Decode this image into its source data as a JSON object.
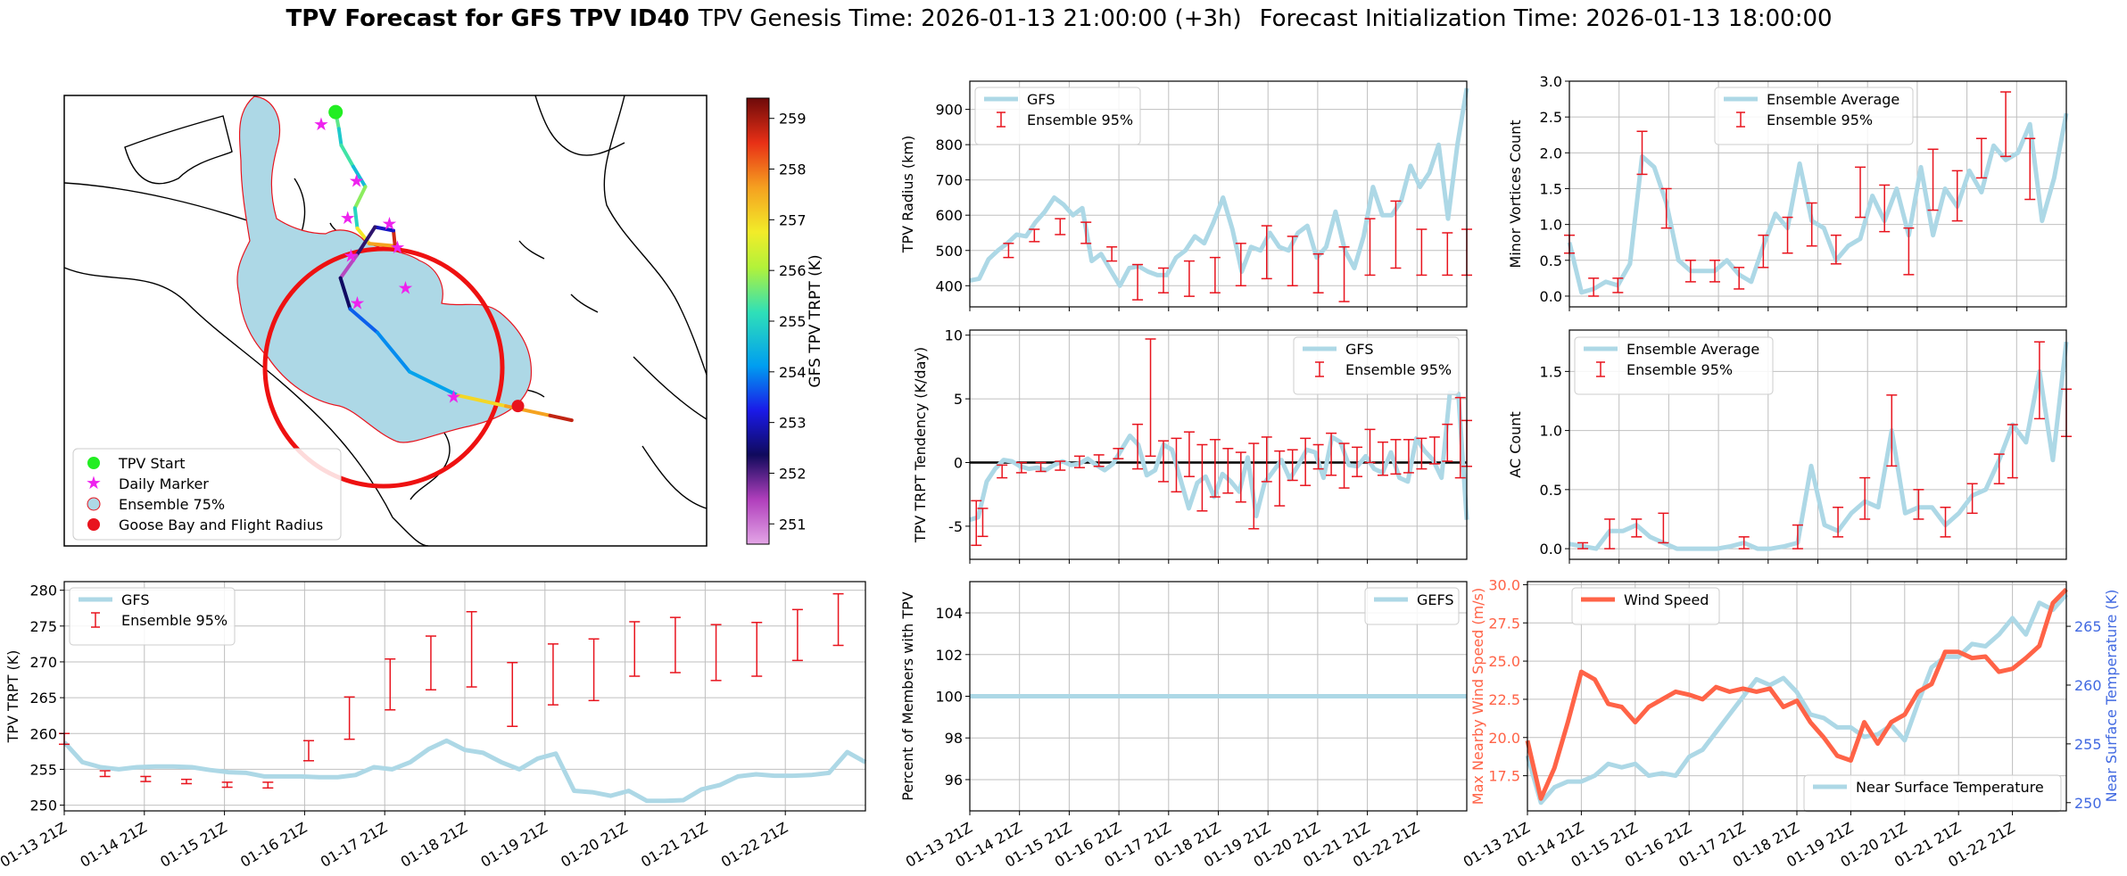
{
  "figure": {
    "title_bold": "TPV Forecast for GFS TPV ID40",
    "genesis": "TPV Genesis Time: 2026-01-13 21:00:00 (+3h)",
    "init": "Forecast Initialization Time: 2026-01-13 18:00:00"
  },
  "colors": {
    "gfs": "#add8e6",
    "ensemble": "#e8141e",
    "wind": "#ff6347",
    "temp_axis": "#4169e1",
    "grid": "#b0b0b0"
  },
  "time_ticks": [
    "01-13 21Z",
    "01-14 21Z",
    "01-15 21Z",
    "01-16 21Z",
    "01-17 21Z",
    "01-18 21Z",
    "01-19 21Z",
    "01-20 21Z",
    "01-21 21Z",
    "01-22 21Z"
  ],
  "chart_data": [
    {
      "id": "map",
      "type": "scatter",
      "legend": [
        "TPV Start",
        "Daily Marker",
        "Ensemble 75%",
        "Goose Bay and Flight Radius"
      ],
      "colorbar": {
        "label": "GFS TPV TRPT (K)",
        "ticks": [
          251,
          252,
          253,
          254,
          255,
          256,
          257,
          258,
          259
        ],
        "range": [
          250.6,
          259.4
        ]
      },
      "track": [
        {
          "lon": -71.2,
          "lat": 78.6,
          "v": 255.5
        },
        {
          "lon": -70.8,
          "lat": 77.2,
          "v": 254.8
        },
        {
          "lon": -70.5,
          "lat": 75.8,
          "v": 255.3
        },
        {
          "lon": -69.0,
          "lat": 74.0,
          "v": 254.6
        },
        {
          "lon": -67.5,
          "lat": 72.3,
          "v": 255.8
        },
        {
          "lon": -68.8,
          "lat": 70.5,
          "v": 255.0
        },
        {
          "lon": -68.5,
          "lat": 68.8,
          "v": 256.8
        },
        {
          "lon": -67.0,
          "lat": 67.5,
          "v": 257.6
        },
        {
          "lon": -63.8,
          "lat": 67.3,
          "v": 258.7
        },
        {
          "lon": -64.0,
          "lat": 68.6,
          "v": 253.0
        },
        {
          "lon": -66.3,
          "lat": 68.9,
          "v": 252.2
        },
        {
          "lon": -68.6,
          "lat": 66.5,
          "v": 251.4
        },
        {
          "lon": -70.6,
          "lat": 64.6,
          "v": 252.4
        },
        {
          "lon": -69.4,
          "lat": 62.0,
          "v": 253.7
        },
        {
          "lon": -66.0,
          "lat": 60.0,
          "v": 254.0
        },
        {
          "lon": -62.0,
          "lat": 56.7,
          "v": 254.2
        },
        {
          "lon": -56.0,
          "lat": 54.7,
          "v": 257.0
        },
        {
          "lon": -50.0,
          "lat": 53.8,
          "v": 257.6
        },
        {
          "lon": -44.5,
          "lat": 53.0,
          "v": 258.8
        },
        {
          "lon": -41.8,
          "lat": 52.6,
          "v": 259.3
        }
      ],
      "daily_markers": [
        {
          "lon": -73.0,
          "lat": 77.6
        },
        {
          "lon": -68.6,
          "lat": 72.8
        },
        {
          "lon": -69.7,
          "lat": 69.7
        },
        {
          "lon": -64.5,
          "lat": 69.2
        },
        {
          "lon": -63.5,
          "lat": 67.2
        },
        {
          "lon": -69.3,
          "lat": 66.5
        },
        {
          "lon": -62.5,
          "lat": 63.8
        },
        {
          "lon": -68.5,
          "lat": 62.5
        },
        {
          "lon": -56.5,
          "lat": 54.6
        }
      ],
      "goose_bay": {
        "lon": -48.5,
        "lat": 53.8
      }
    },
    {
      "id": "radius",
      "type": "line",
      "ylabel": "TPV Radius (km)",
      "ylim": [
        340,
        980
      ],
      "yticks": [
        400,
        500,
        600,
        700,
        800,
        900
      ],
      "legend": [
        "GFS",
        "Ensemble 95%"
      ],
      "gfs": [
        415,
        420,
        475,
        500,
        520,
        545,
        540,
        580,
        610,
        650,
        630,
        600,
        620,
        470,
        490,
        445,
        400,
        450,
        455,
        440,
        430,
        430,
        480,
        500,
        540,
        520,
        580,
        650,
        560,
        440,
        510,
        500,
        550,
        510,
        500,
        550,
        570,
        480,
        510,
        610,
        500,
        450,
        540,
        680,
        600,
        600,
        640,
        740,
        680,
        720,
        800,
        590,
        800,
        960
      ],
      "ens": [
        {
          "i": 6,
          "lo": 480,
          "hi": 520
        },
        {
          "i": 10,
          "lo": 525,
          "hi": 560
        },
        {
          "i": 14,
          "lo": 545,
          "hi": 590
        },
        {
          "i": 18,
          "lo": 520,
          "hi": 580
        },
        {
          "i": 22,
          "lo": 470,
          "hi": 510
        },
        {
          "i": 26,
          "lo": 360,
          "hi": 460
        },
        {
          "i": 30,
          "lo": 380,
          "hi": 450
        },
        {
          "i": 34,
          "lo": 370,
          "hi": 470
        },
        {
          "i": 38,
          "lo": 380,
          "hi": 480
        },
        {
          "i": 42,
          "lo": 400,
          "hi": 520
        },
        {
          "i": 46,
          "lo": 420,
          "hi": 570
        },
        {
          "i": 50,
          "lo": 400,
          "hi": 540
        },
        {
          "i": 54,
          "lo": 380,
          "hi": 490
        },
        {
          "i": 58,
          "lo": 355,
          "hi": 510
        },
        {
          "i": 62,
          "lo": 430,
          "hi": 590
        },
        {
          "i": 66,
          "lo": 450,
          "hi": 640
        },
        {
          "i": 70,
          "lo": 430,
          "hi": 560
        },
        {
          "i": 74,
          "lo": 430,
          "hi": 550
        },
        {
          "i": 77,
          "lo": 430,
          "hi": 560
        }
      ]
    },
    {
      "id": "tendency",
      "type": "line",
      "ylabel": "TPV TRPT Tendency (K/day)",
      "ylim": [
        -7.6,
        10.4
      ],
      "yticks": [
        -5,
        0,
        5,
        10
      ],
      "legend": [
        "GFS",
        "Ensemble 95%"
      ],
      "gfs": [
        -4.5,
        -4.3,
        -1.5,
        -0.5,
        0.2,
        0.1,
        -0.3,
        -0.5,
        -0.4,
        -0.6,
        -0.2,
        0.1,
        -0.2,
        -0.1,
        0.3,
        -0.2,
        -0.6,
        -0.1,
        1.0,
        2.1,
        1.4,
        -1.0,
        -0.6,
        1.4,
        1.0,
        -1.3,
        -3.6,
        -1.6,
        -1.1,
        -2.7,
        -0.9,
        -1.5,
        -2.3,
        0.4,
        -4.2,
        -1.6,
        -0.7,
        0.2,
        -1.3,
        -0.2,
        1.0,
        0.8,
        -1.2,
        2.0,
        1.6,
        -0.2,
        -0.3,
        0.5,
        -0.5,
        -0.8,
        0.8,
        -1.2,
        -1.5,
        1.9,
        0.9,
        0.2,
        -1.2,
        5.5,
        5.4,
        -4.5
      ],
      "ens": [
        {
          "i": 1,
          "lo": -6.5,
          "hi": -3.0
        },
        {
          "i": 2,
          "lo": -5.8,
          "hi": -3.6
        },
        {
          "i": 5,
          "lo": -1.2,
          "hi": -0.2
        },
        {
          "i": 8,
          "lo": -0.8,
          "hi": 0.0
        },
        {
          "i": 11,
          "lo": -0.7,
          "hi": 0.0
        },
        {
          "i": 14,
          "lo": -0.6,
          "hi": 0.1
        },
        {
          "i": 17,
          "lo": -0.4,
          "hi": 0.5
        },
        {
          "i": 20,
          "lo": -0.3,
          "hi": 0.6
        },
        {
          "i": 23,
          "lo": 0.3,
          "hi": 1.1
        },
        {
          "i": 26,
          "lo": -0.5,
          "hi": 3.0
        },
        {
          "i": 28,
          "lo": 0.5,
          "hi": 9.7
        },
        {
          "i": 30,
          "lo": -1.5,
          "hi": 1.7
        },
        {
          "i": 32,
          "lo": -2.3,
          "hi": 1.9
        },
        {
          "i": 34,
          "lo": -1.1,
          "hi": 2.4
        },
        {
          "i": 36,
          "lo": -3.8,
          "hi": 1.4
        },
        {
          "i": 38,
          "lo": -2.7,
          "hi": 1.8
        },
        {
          "i": 40,
          "lo": -2.4,
          "hi": 1.1
        },
        {
          "i": 42,
          "lo": -3.1,
          "hi": 0.8
        },
        {
          "i": 44,
          "lo": -5.2,
          "hi": 1.5
        },
        {
          "i": 46,
          "lo": -1.5,
          "hi": 2.0
        },
        {
          "i": 48,
          "lo": -3.4,
          "hi": 0.9
        },
        {
          "i": 50,
          "lo": -1.4,
          "hi": 1.0
        },
        {
          "i": 52,
          "lo": -1.8,
          "hi": 1.9
        },
        {
          "i": 54,
          "lo": -0.5,
          "hi": 1.4
        },
        {
          "i": 56,
          "lo": -1.0,
          "hi": 2.3
        },
        {
          "i": 58,
          "lo": -2.0,
          "hi": 1.5
        },
        {
          "i": 60,
          "lo": -1.1,
          "hi": 1.2
        },
        {
          "i": 62,
          "lo": 0.0,
          "hi": 2.6
        },
        {
          "i": 64,
          "lo": -1.0,
          "hi": 1.6
        },
        {
          "i": 66,
          "lo": -0.9,
          "hi": 1.8
        },
        {
          "i": 68,
          "lo": -0.8,
          "hi": 1.8
        },
        {
          "i": 70,
          "lo": -0.5,
          "hi": 1.9
        },
        {
          "i": 72,
          "lo": -0.1,
          "hi": 2.0
        },
        {
          "i": 74,
          "lo": 0.1,
          "hi": 3.0
        },
        {
          "i": 76,
          "lo": -1.2,
          "hi": 5.1
        },
        {
          "i": 77,
          "lo": -0.3,
          "hi": 3.3
        }
      ]
    },
    {
      "id": "trpt",
      "type": "line",
      "ylabel": "TPV TRPT (K)",
      "ylim": [
        249.2,
        281.2
      ],
      "yticks": [
        250,
        255,
        260,
        265,
        270,
        275,
        280
      ],
      "legend": [
        "GFS",
        "Ensemble 95%"
      ],
      "gfs": [
        258.8,
        256.0,
        255.3,
        255.0,
        255.3,
        255.4,
        255.4,
        255.3,
        254.9,
        254.6,
        254.5,
        254.0,
        254.0,
        254.0,
        253.9,
        253.9,
        254.2,
        255.3,
        255.0,
        256.0,
        257.8,
        259.0,
        257.7,
        257.3,
        256.0,
        255.0,
        256.5,
        257.2,
        252.0,
        251.8,
        251.3,
        252.0,
        250.6,
        250.6,
        250.7,
        252.2,
        252.8,
        254.0,
        254.3,
        254.1,
        254.1,
        254.2,
        254.5,
        257.4,
        256.0
      ],
      "ens": [
        {
          "i": 0,
          "lo": 258.5,
          "hi": 260.0
        },
        {
          "i": 3,
          "lo": 254.0,
          "hi": 254.8
        },
        {
          "i": 6,
          "lo": 253.3,
          "hi": 254.0
        },
        {
          "i": 9,
          "lo": 253.0,
          "hi": 253.6
        },
        {
          "i": 12,
          "lo": 252.5,
          "hi": 253.2
        },
        {
          "i": 15,
          "lo": 252.4,
          "hi": 253.2
        },
        {
          "i": 18,
          "lo": 256.2,
          "hi": 259.0
        },
        {
          "i": 21,
          "lo": 259.2,
          "hi": 265.1
        },
        {
          "i": 24,
          "lo": 263.3,
          "hi": 270.4
        },
        {
          "i": 27,
          "lo": 266.1,
          "hi": 273.6
        },
        {
          "i": 30,
          "lo": 266.5,
          "hi": 277.0
        },
        {
          "i": 33,
          "lo": 261.0,
          "hi": 269.9
        },
        {
          "i": 36,
          "lo": 264.0,
          "hi": 272.5
        },
        {
          "i": 39,
          "lo": 264.6,
          "hi": 273.2
        },
        {
          "i": 42,
          "lo": 268.0,
          "hi": 275.6
        },
        {
          "i": 45,
          "lo": 268.5,
          "hi": 276.2
        },
        {
          "i": 48,
          "lo": 267.4,
          "hi": 275.2
        },
        {
          "i": 51,
          "lo": 268.0,
          "hi": 275.5
        },
        {
          "i": 54,
          "lo": 270.2,
          "hi": 277.3
        },
        {
          "i": 57,
          "lo": 272.3,
          "hi": 279.5
        }
      ]
    },
    {
      "id": "percent",
      "type": "line",
      "ylabel": "Percent of Members with TPV",
      "ylim": [
        94.5,
        105.5
      ],
      "yticks": [
        96,
        98,
        100,
        102,
        104
      ],
      "legend": [
        "GEFS"
      ],
      "gefs": [
        100,
        100
      ]
    },
    {
      "id": "minor",
      "type": "line",
      "ylabel": "Minor Vortices Count",
      "ylim": [
        -0.15,
        3.0
      ],
      "yticks": [
        0.0,
        0.5,
        1.0,
        1.5,
        2.0,
        2.5,
        3.0
      ],
      "legend": [
        "Ensemble Average",
        "Ensemble 95%"
      ],
      "avg": [
        0.75,
        0.05,
        0.1,
        0.2,
        0.15,
        0.45,
        1.95,
        1.8,
        1.3,
        0.5,
        0.35,
        0.35,
        0.35,
        0.5,
        0.3,
        0.2,
        0.7,
        1.15,
        0.95,
        1.85,
        1.05,
        0.95,
        0.5,
        0.7,
        0.8,
        1.4,
        1.05,
        1.5,
        0.85,
        1.8,
        0.85,
        1.5,
        1.25,
        1.75,
        1.45,
        2.1,
        1.9,
        2.0,
        2.4,
        1.05,
        1.65,
        2.55
      ],
      "ens": [
        {
          "i": 0,
          "lo": 0.6,
          "hi": 0.85
        },
        {
          "i": 2,
          "lo": 0.0,
          "hi": 0.25
        },
        {
          "i": 4,
          "lo": 0.05,
          "hi": 0.25
        },
        {
          "i": 6,
          "lo": 1.7,
          "hi": 2.3
        },
        {
          "i": 8,
          "lo": 0.95,
          "hi": 1.5
        },
        {
          "i": 10,
          "lo": 0.2,
          "hi": 0.5
        },
        {
          "i": 12,
          "lo": 0.2,
          "hi": 0.5
        },
        {
          "i": 14,
          "lo": 0.1,
          "hi": 0.4
        },
        {
          "i": 16,
          "lo": 0.4,
          "hi": 0.85
        },
        {
          "i": 18,
          "lo": 0.6,
          "hi": 1.1
        },
        {
          "i": 20,
          "lo": 0.7,
          "hi": 1.3
        },
        {
          "i": 22,
          "lo": 0.45,
          "hi": 0.85
        },
        {
          "i": 24,
          "lo": 1.1,
          "hi": 1.8
        },
        {
          "i": 26,
          "lo": 0.9,
          "hi": 1.55
        },
        {
          "i": 28,
          "lo": 0.3,
          "hi": 0.95
        },
        {
          "i": 30,
          "lo": 1.2,
          "hi": 2.05
        },
        {
          "i": 32,
          "lo": 1.05,
          "hi": 1.75
        },
        {
          "i": 34,
          "lo": 1.65,
          "hi": 2.2
        },
        {
          "i": 36,
          "lo": 1.95,
          "hi": 2.85
        },
        {
          "i": 38,
          "lo": 1.35,
          "hi": 2.2
        }
      ]
    },
    {
      "id": "ac",
      "type": "line",
      "ylabel": "AC Count",
      "ylim": [
        -0.09,
        1.85
      ],
      "yticks": [
        0.0,
        0.5,
        1.0,
        1.5
      ],
      "legend": [
        "Ensemble Average",
        "Ensemble 95%"
      ],
      "avg": [
        0.04,
        0.02,
        0.0,
        0.15,
        0.15,
        0.2,
        0.1,
        0.05,
        0.0,
        0.0,
        0.0,
        0.0,
        0.02,
        0.05,
        0.0,
        0.0,
        0.02,
        0.05,
        0.7,
        0.2,
        0.15,
        0.3,
        0.4,
        0.35,
        1.0,
        0.3,
        0.35,
        0.35,
        0.2,
        0.3,
        0.45,
        0.5,
        0.75,
        1.05,
        0.9,
        1.5,
        0.75,
        1.75
      ],
      "ens": [
        {
          "i": 1,
          "lo": 0.0,
          "hi": 0.05
        },
        {
          "i": 3,
          "lo": 0.0,
          "hi": 0.25
        },
        {
          "i": 5,
          "lo": 0.1,
          "hi": 0.25
        },
        {
          "i": 7,
          "lo": 0.05,
          "hi": 0.3
        },
        {
          "i": 13,
          "lo": 0.0,
          "hi": 0.1
        },
        {
          "i": 17,
          "lo": 0.0,
          "hi": 0.2
        },
        {
          "i": 20,
          "lo": 0.1,
          "hi": 0.35
        },
        {
          "i": 22,
          "lo": 0.25,
          "hi": 0.6
        },
        {
          "i": 24,
          "lo": 0.7,
          "hi": 1.3
        },
        {
          "i": 26,
          "lo": 0.25,
          "hi": 0.5
        },
        {
          "i": 28,
          "lo": 0.1,
          "hi": 0.35
        },
        {
          "i": 30,
          "lo": 0.3,
          "hi": 0.55
        },
        {
          "i": 32,
          "lo": 0.55,
          "hi": 0.8
        },
        {
          "i": 33,
          "lo": 0.6,
          "hi": 1.05
        },
        {
          "i": 35,
          "lo": 1.1,
          "hi": 1.75
        },
        {
          "i": 37,
          "lo": 0.95,
          "hi": 1.35
        }
      ]
    },
    {
      "id": "wind_temp",
      "type": "line",
      "ylabel": "Max Nearby Wind Speed (m/s)",
      "ylabel_right": "Near Surface Temperature (K)",
      "ylim": [
        15.2,
        30.2
      ],
      "yticks": [
        17.5,
        20.0,
        22.5,
        25.0,
        27.5,
        30.0
      ],
      "ylim_right": [
        249.3,
        268.8
      ],
      "yticks_right": [
        250,
        255,
        260,
        265
      ],
      "legend": [
        "Wind Speed",
        "Near Surface Temperature"
      ],
      "wind": [
        19.8,
        16.0,
        18.0,
        21.0,
        24.3,
        23.8,
        22.2,
        22.0,
        21.0,
        22.0,
        22.5,
        23.0,
        22.8,
        22.5,
        23.3,
        23.0,
        23.2,
        23.0,
        23.2,
        22.0,
        22.4,
        21.0,
        20.0,
        18.8,
        18.5,
        21.0,
        19.6,
        21.0,
        21.5,
        23.0,
        23.5,
        25.6,
        25.6,
        25.2,
        25.3,
        24.3,
        24.5,
        25.2,
        26.0,
        28.8,
        29.7
      ],
      "temp": [
        254.0,
        250.0,
        251.3,
        251.8,
        251.8,
        252.3,
        253.3,
        253.0,
        253.3,
        252.3,
        252.5,
        252.3,
        253.9,
        254.5,
        256.0,
        257.5,
        259.0,
        260.5,
        260.0,
        260.6,
        259.4,
        257.5,
        257.2,
        256.4,
        256.4,
        255.6,
        255.8,
        256.6,
        255.3,
        258.5,
        261.5,
        262.4,
        262.4,
        263.5,
        263.3,
        264.3,
        265.7,
        264.3,
        267.0,
        266.4,
        267.7
      ]
    }
  ]
}
